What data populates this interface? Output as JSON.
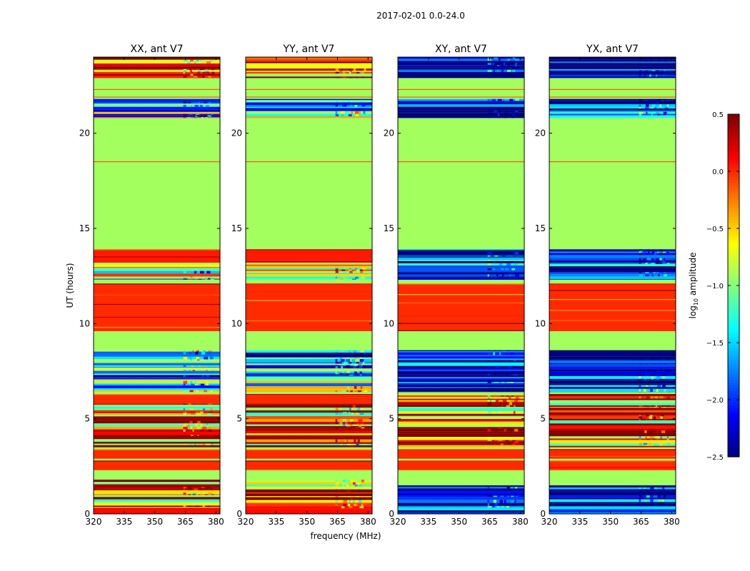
{
  "chart_data": {
    "type": "heatmap",
    "suptitle": "2017-02-01 0.0-24.0",
    "xlabel": "frequency (MHz)",
    "ylabel": "UT (hours)",
    "xlim": [
      320,
      382
    ],
    "ylim": [
      0,
      24
    ],
    "xticks": [
      320,
      335,
      350,
      365,
      380
    ],
    "yticks": [
      0,
      5,
      10,
      15,
      20
    ],
    "panels": [
      {
        "title": "XX, ant V7",
        "base_value": -0.9,
        "bands": [
          {
            "t0": 0.0,
            "t1": 0.3,
            "value": 0.1
          },
          {
            "t0": 0.3,
            "t1": 1.8,
            "value": -0.3,
            "mix": true
          },
          {
            "t0": 2.3,
            "t1": 2.8,
            "value": 0.0
          },
          {
            "t0": 2.9,
            "t1": 3.4,
            "value": 0.0
          },
          {
            "t0": 3.5,
            "t1": 5.8,
            "value": -0.2,
            "mix": true
          },
          {
            "t0": 5.8,
            "t1": 6.3,
            "value": 0.0
          },
          {
            "t0": 6.4,
            "t1": 8.6,
            "value": -1.4,
            "mix": true
          },
          {
            "t0": 9.6,
            "t1": 12.1,
            "value": 0.0
          },
          {
            "t0": 12.3,
            "t1": 13.1,
            "value": -0.6,
            "mix": true
          },
          {
            "t0": 13.2,
            "t1": 13.9,
            "value": 0.05
          },
          {
            "t0": 20.8,
            "t1": 21.8,
            "value": -1.2,
            "mix": true
          },
          {
            "t0": 22.9,
            "t1": 24.0,
            "value": 0.0,
            "mix": true
          }
        ]
      },
      {
        "title": "YY, ant V7",
        "base_value": -0.9,
        "bands": [
          {
            "t0": 0.0,
            "t1": 0.3,
            "value": 0.1
          },
          {
            "t0": 0.3,
            "t1": 1.8,
            "value": -0.3,
            "mix": true
          },
          {
            "t0": 2.3,
            "t1": 2.8,
            "value": 0.0
          },
          {
            "t0": 2.9,
            "t1": 3.4,
            "value": 0.0
          },
          {
            "t0": 3.5,
            "t1": 5.8,
            "value": -0.2,
            "mix": true
          },
          {
            "t0": 5.8,
            "t1": 6.3,
            "value": 0.0
          },
          {
            "t0": 6.4,
            "t1": 8.6,
            "value": -1.4,
            "mix": true
          },
          {
            "t0": 9.6,
            "t1": 12.1,
            "value": 0.0
          },
          {
            "t0": 12.3,
            "t1": 13.1,
            "value": -0.6,
            "mix": true
          },
          {
            "t0": 13.2,
            "t1": 13.9,
            "value": 0.05
          },
          {
            "t0": 20.8,
            "t1": 21.8,
            "value": -1.2,
            "mix": true
          },
          {
            "t0": 22.9,
            "t1": 24.0,
            "value": 0.0,
            "mix": true
          }
        ]
      },
      {
        "title": "XY, ant V7",
        "base_value": -0.9,
        "bands": [
          {
            "t0": 0.0,
            "t1": 1.5,
            "value": -2.4,
            "mix": true
          },
          {
            "t0": 2.3,
            "t1": 2.8,
            "value": 0.0
          },
          {
            "t0": 2.9,
            "t1": 3.4,
            "value": 0.0
          },
          {
            "t0": 3.5,
            "t1": 6.3,
            "value": -0.2,
            "mix": true
          },
          {
            "t0": 6.4,
            "t1": 8.6,
            "value": -2.4,
            "mix": true
          },
          {
            "t0": 9.6,
            "t1": 12.1,
            "value": 0.0
          },
          {
            "t0": 12.3,
            "t1": 13.9,
            "value": -2.2,
            "mix": true
          },
          {
            "t0": 20.8,
            "t1": 21.8,
            "value": -2.4,
            "mix": true
          },
          {
            "t0": 22.9,
            "t1": 24.0,
            "value": -2.4,
            "mix": true
          }
        ]
      },
      {
        "title": "YX, ant V7",
        "base_value": -0.9,
        "bands": [
          {
            "t0": 0.0,
            "t1": 1.5,
            "value": -2.4,
            "mix": true
          },
          {
            "t0": 2.3,
            "t1": 2.8,
            "value": 0.0
          },
          {
            "t0": 2.9,
            "t1": 3.4,
            "value": 0.0
          },
          {
            "t0": 3.5,
            "t1": 6.3,
            "value": -0.2,
            "mix": true
          },
          {
            "t0": 6.4,
            "t1": 8.6,
            "value": -2.4,
            "mix": true
          },
          {
            "t0": 9.6,
            "t1": 12.1,
            "value": 0.0
          },
          {
            "t0": 12.3,
            "t1": 13.9,
            "value": -2.2,
            "mix": true
          },
          {
            "t0": 20.8,
            "t1": 21.8,
            "value": -2.4,
            "mix": true
          },
          {
            "t0": 22.9,
            "t1": 24.0,
            "value": -2.4,
            "mix": true
          }
        ]
      }
    ],
    "rfi_frequency_range": [
      364,
      378
    ],
    "colorbar": {
      "label": "log10 amplitude",
      "label_main": "log",
      "label_sub": "10",
      "label_rest": " amplitude",
      "vmin": -2.5,
      "vmax": 0.5,
      "ticks": [
        0.5,
        0.0,
        -0.5,
        -1.0,
        -1.5,
        -2.0,
        -2.5
      ],
      "tick_labels": [
        "0.5",
        "0.0",
        "−0.5",
        "−1.0",
        "−1.5",
        "−2.0",
        "−2.5"
      ],
      "colormap": "jet"
    }
  }
}
